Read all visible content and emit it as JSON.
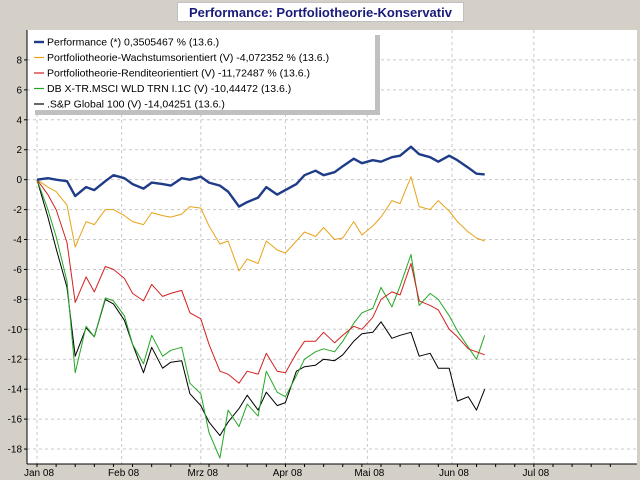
{
  "chart_data": {
    "type": "line",
    "title": "Performance: Portfoliotheorie-Konservativ",
    "xlabel": "",
    "ylabel": "",
    "ylim": [
      -19,
      10
    ],
    "xlim": [
      0,
      210
    ],
    "grid": true,
    "legend_position": "top-left",
    "x_ticks": [
      {
        "label": "Jan 08",
        "x": 0
      },
      {
        "label": "Feb 08",
        "x": 31
      },
      {
        "label": "Mrz 08",
        "x": 60
      },
      {
        "label": "Apr 08",
        "x": 91
      },
      {
        "label": "Mai 08",
        "x": 121
      },
      {
        "label": "Jun 08",
        "x": 152
      },
      {
        "label": "Jul 08",
        "x": 182
      }
    ],
    "y_ticks": [
      8,
      6,
      4,
      2,
      0,
      -2,
      -4,
      -6,
      -8,
      -10,
      -12,
      -14,
      -16,
      -18
    ],
    "series": [
      {
        "name": "Performance (*) 0,3505467 % (13.6.)",
        "color": "#1f3c88",
        "x": [
          0,
          4,
          7,
          11,
          14,
          18,
          21,
          25,
          28,
          32,
          35,
          39,
          42,
          46,
          49,
          53,
          56,
          60,
          63,
          67,
          70,
          74,
          77,
          81,
          84,
          88,
          91,
          95,
          98,
          102,
          105,
          109,
          112,
          116,
          119,
          123,
          126,
          130,
          133,
          137,
          140,
          144,
          147,
          151,
          154,
          158,
          161,
          164
        ],
        "values": [
          0.0,
          0.1,
          0.0,
          -0.1,
          -1.1,
          -0.5,
          -0.7,
          -0.1,
          0.3,
          0.1,
          -0.3,
          -0.6,
          -0.2,
          -0.3,
          -0.4,
          0.1,
          0.0,
          0.2,
          -0.2,
          -0.4,
          -0.8,
          -1.8,
          -1.5,
          -1.2,
          -0.5,
          -1.0,
          -0.7,
          -0.3,
          0.3,
          0.6,
          0.3,
          0.5,
          0.9,
          1.4,
          1.1,
          1.3,
          1.2,
          1.5,
          1.6,
          2.2,
          1.7,
          1.5,
          1.2,
          1.6,
          1.3,
          0.8,
          0.4,
          0.35
        ]
      },
      {
        "name": "Portfoliotheorie-Wachstumsorientiert (V) -4,072352 % (13.6.)",
        "color": "#e8a317",
        "x": [
          0,
          4,
          7,
          11,
          14,
          18,
          21,
          25,
          28,
          32,
          35,
          39,
          42,
          46,
          49,
          53,
          56,
          60,
          63,
          67,
          70,
          74,
          77,
          81,
          84,
          88,
          91,
          95,
          98,
          102,
          105,
          109,
          112,
          116,
          119,
          123,
          126,
          130,
          133,
          137,
          140,
          144,
          147,
          151,
          154,
          158,
          161,
          164
        ],
        "values": [
          0.0,
          -0.5,
          -0.8,
          -1.7,
          -4.5,
          -2.8,
          -3.0,
          -2.0,
          -2.0,
          -2.4,
          -2.8,
          -3.0,
          -2.2,
          -2.4,
          -2.5,
          -2.3,
          -1.8,
          -1.9,
          -3.1,
          -4.3,
          -4.1,
          -6.1,
          -5.3,
          -5.6,
          -4.1,
          -4.7,
          -4.9,
          -4.1,
          -3.5,
          -3.8,
          -3.2,
          -4.0,
          -3.9,
          -2.8,
          -3.7,
          -3.1,
          -2.5,
          -1.4,
          -1.6,
          0.2,
          -1.8,
          -2.0,
          -1.4,
          -2.1,
          -2.8,
          -3.5,
          -3.9,
          -4.1
        ]
      },
      {
        "name": "Portfoliotheorie-Renditeorientiert (V) -11,72487 % (13.6.)",
        "color": "#d42020",
        "x": [
          0,
          4,
          7,
          11,
          14,
          18,
          21,
          25,
          28,
          32,
          35,
          39,
          42,
          46,
          49,
          53,
          56,
          60,
          63,
          67,
          70,
          74,
          77,
          81,
          84,
          88,
          91,
          95,
          98,
          102,
          105,
          109,
          112,
          116,
          119,
          123,
          126,
          130,
          133,
          137,
          140,
          144,
          147,
          151,
          154,
          158,
          161,
          164
        ],
        "values": [
          0.0,
          -1.0,
          -2.0,
          -4.2,
          -8.2,
          -6.5,
          -7.5,
          -5.8,
          -6.0,
          -6.6,
          -7.6,
          -8.1,
          -7.0,
          -7.8,
          -7.6,
          -7.4,
          -8.9,
          -9.3,
          -11.0,
          -12.8,
          -13.0,
          -13.6,
          -12.8,
          -13.0,
          -11.6,
          -12.8,
          -12.9,
          -11.6,
          -10.8,
          -10.8,
          -10.2,
          -10.9,
          -10.4,
          -9.8,
          -10.0,
          -9.2,
          -8.0,
          -7.5,
          -7.7,
          -5.6,
          -8.1,
          -8.4,
          -8.7,
          -10.0,
          -10.5,
          -11.3,
          -11.5,
          -11.7
        ]
      },
      {
        "name": "DB X-TR.MSCI WLD TRN I.1C (V) -10,44472 (13.6.)",
        "color": "#24a824",
        "x": [
          0,
          4,
          7,
          11,
          14,
          18,
          21,
          25,
          28,
          32,
          35,
          39,
          42,
          46,
          49,
          53,
          56,
          60,
          63,
          67,
          70,
          74,
          77,
          81,
          84,
          88,
          91,
          95,
          98,
          102,
          105,
          109,
          112,
          116,
          119,
          123,
          126,
          130,
          133,
          137,
          140,
          144,
          147,
          151,
          154,
          158,
          161,
          164
        ],
        "values": [
          0.0,
          -2.0,
          -3.8,
          -6.8,
          -12.9,
          -9.8,
          -10.5,
          -7.9,
          -8.1,
          -9.1,
          -11.0,
          -12.3,
          -10.4,
          -11.8,
          -11.4,
          -11.2,
          -13.6,
          -14.3,
          -16.9,
          -18.6,
          -15.4,
          -16.5,
          -15.0,
          -15.8,
          -12.8,
          -14.2,
          -14.5,
          -13.1,
          -12.0,
          -11.5,
          -11.3,
          -11.5,
          -10.8,
          -9.6,
          -8.9,
          -8.6,
          -7.2,
          -8.5,
          -7.1,
          -5.0,
          -8.4,
          -7.6,
          -8.0,
          -9.1,
          -10.1,
          -11.2,
          -12.0,
          -10.4
        ]
      },
      {
        "name": ".S&P Global 100 (V) -14,04251 (13.6.)",
        "color": "#000000",
        "x": [
          0,
          4,
          7,
          11,
          14,
          18,
          21,
          25,
          28,
          32,
          35,
          39,
          42,
          46,
          49,
          53,
          56,
          60,
          63,
          67,
          70,
          74,
          77,
          81,
          84,
          88,
          91,
          95,
          98,
          102,
          105,
          109,
          112,
          116,
          119,
          123,
          126,
          130,
          133,
          137,
          140,
          144,
          147,
          151,
          154,
          158,
          161,
          164
        ],
        "values": [
          0.0,
          -2.5,
          -4.6,
          -7.2,
          -11.8,
          -9.9,
          -10.5,
          -8.0,
          -8.3,
          -9.4,
          -11.0,
          -12.9,
          -11.2,
          -12.6,
          -12.2,
          -12.1,
          -14.3,
          -15.1,
          -16.2,
          -17.1,
          -16.2,
          -15.3,
          -14.4,
          -15.4,
          -14.2,
          -15.1,
          -14.9,
          -12.8,
          -12.5,
          -12.4,
          -12.0,
          -12.1,
          -11.7,
          -10.8,
          -10.3,
          -10.2,
          -9.5,
          -10.6,
          -10.4,
          -10.2,
          -11.8,
          -11.6,
          -12.6,
          -12.6,
          -14.8,
          -14.5,
          -15.4,
          -14.0
        ]
      }
    ]
  }
}
